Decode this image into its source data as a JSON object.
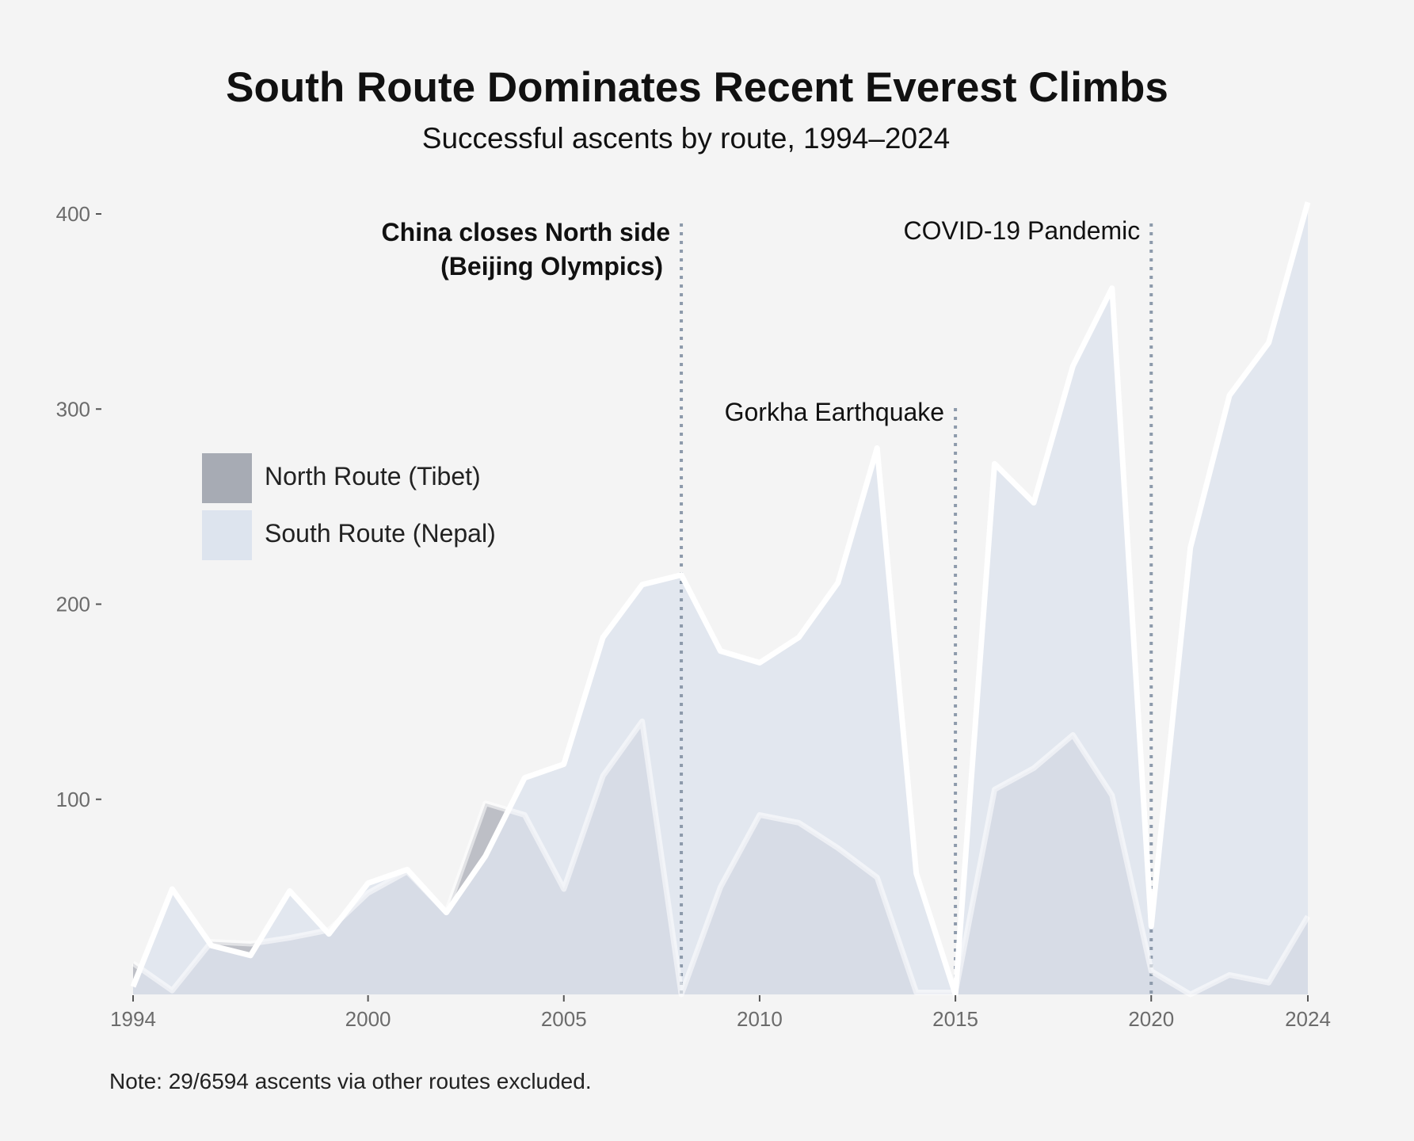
{
  "title": "South Route Dominates Recent Everest Climbs",
  "subtitle": "Successful ascents by route, 1994–2024",
  "note": "Note: 29/6594 ascents via other routes excluded.",
  "chart_data": {
    "type": "area",
    "x": [
      1994,
      1995,
      1996,
      1997,
      1998,
      1999,
      2000,
      2001,
      2002,
      2003,
      2004,
      2005,
      2006,
      2007,
      2008,
      2009,
      2010,
      2011,
      2012,
      2013,
      2014,
      2015,
      2016,
      2017,
      2018,
      2019,
      2020,
      2021,
      2022,
      2023,
      2024
    ],
    "series": [
      {
        "name": "North Route (Tibet)",
        "color": "#a7abb4",
        "values": [
          16,
          2,
          27,
          26,
          29,
          33,
          52,
          63,
          42,
          98,
          92,
          54,
          112,
          140,
          0,
          55,
          92,
          88,
          75,
          60,
          1,
          1,
          105,
          116,
          133,
          102,
          12,
          0,
          10,
          6,
          40
        ]
      },
      {
        "name": "South Route (Nepal)",
        "color": "#dde4ee",
        "values": [
          4,
          54,
          25,
          20,
          53,
          31,
          57,
          64,
          42,
          71,
          111,
          118,
          183,
          210,
          215,
          176,
          170,
          183,
          211,
          280,
          62,
          0,
          272,
          252,
          322,
          362,
          35,
          229,
          307,
          334,
          406
        ]
      }
    ],
    "xlim": [
      1994,
      2024
    ],
    "ylim": [
      0,
      400
    ],
    "x_ticks": [
      1994,
      2000,
      2005,
      2010,
      2015,
      2020,
      2024
    ],
    "y_ticks": [
      100,
      200,
      300,
      400
    ],
    "grid": false,
    "legend_position": "upper-left",
    "annotations": [
      {
        "year": 2008,
        "lines": [
          "China closes North side",
          "(Beijing Olympics)"
        ],
        "bold": true
      },
      {
        "year": 2015,
        "lines": [
          "Gorkha Earthquake"
        ],
        "bold": false
      },
      {
        "year": 2020,
        "lines": [
          "COVID-19 Pandemic"
        ],
        "bold": false
      }
    ]
  }
}
